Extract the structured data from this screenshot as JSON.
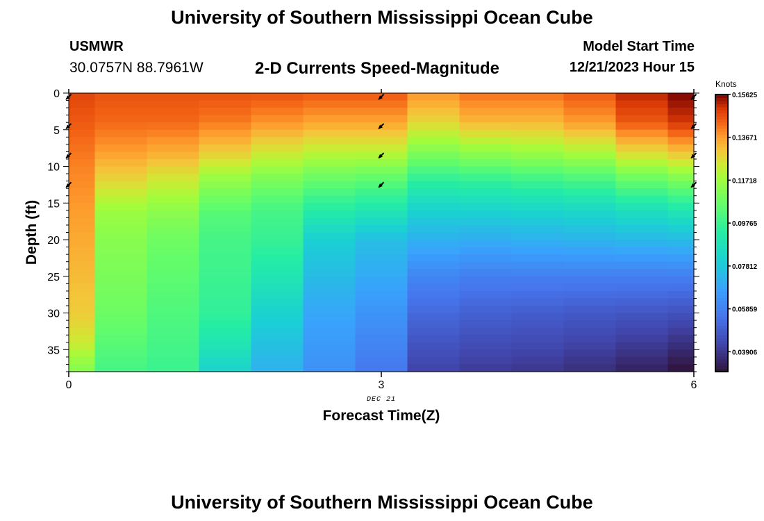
{
  "header": {
    "title": "University of Southern Mississippi Ocean Cube",
    "station": "USMWR",
    "coordinates": "30.0757N  88.7961W",
    "subtitle": "2-D Currents Speed-Magnitude",
    "start_label": "Model Start Time",
    "start_time": "12/21/2023 Hour 15"
  },
  "footer": {
    "title": "University of Southern Mississippi Ocean Cube"
  },
  "chart_data": {
    "type": "heatmap",
    "title": "2-D Currents Speed-Magnitude",
    "xlabel": "Forecast Time(Z)",
    "ylabel": "Depth (ft)",
    "x_ticks": [
      0,
      3,
      6
    ],
    "x_sub_label": "DEC 21",
    "y_ticks": [
      0,
      5,
      10,
      15,
      20,
      25,
      30,
      35
    ],
    "xlim": [
      0,
      6
    ],
    "ylim": [
      38,
      0
    ],
    "colorbar": {
      "label": "Knots",
      "ticks": [
        "0.15625",
        "0.13671",
        "0.11718",
        "0.09765",
        "0.07812",
        "0.05859",
        "0.03906"
      ],
      "range": [
        0.03,
        0.1562
      ]
    },
    "column_times": [
      0,
      0.25,
      0.75,
      1.25,
      1.75,
      2.25,
      2.75,
      3.25,
      3.75,
      4.25,
      4.75,
      5.25,
      5.75
    ],
    "column_edges": [
      0,
      0.25,
      0.75,
      1.25,
      1.75,
      2.25,
      2.75,
      3.25,
      3.75,
      4.25,
      4.75,
      5.25,
      5.75,
      6
    ],
    "depth_profiles": [
      {
        "depth": [
          0,
          10,
          20,
          30,
          34,
          38
        ],
        "speed": [
          0.148,
          0.14,
          0.135,
          0.13,
          0.124,
          0.112
        ]
      },
      {
        "depth": [
          0,
          4,
          8,
          12,
          16,
          20,
          30,
          36,
          38
        ],
        "speed": [
          0.146,
          0.143,
          0.137,
          0.128,
          0.117,
          0.113,
          0.108,
          0.102,
          0.1
        ]
      },
      {
        "depth": [
          0,
          4,
          8,
          12,
          16,
          20,
          30,
          38
        ],
        "speed": [
          0.146,
          0.143,
          0.135,
          0.124,
          0.114,
          0.108,
          0.102,
          0.098
        ]
      },
      {
        "depth": [
          0,
          4,
          8,
          12,
          16,
          20,
          30,
          34,
          38
        ],
        "speed": [
          0.146,
          0.141,
          0.13,
          0.115,
          0.104,
          0.1,
          0.096,
          0.09,
          0.082
        ]
      },
      {
        "depth": [
          0,
          4,
          8,
          12,
          16,
          20,
          25,
          30,
          38
        ],
        "speed": [
          0.146,
          0.138,
          0.125,
          0.11,
          0.1,
          0.097,
          0.09,
          0.082,
          0.072
        ]
      },
      {
        "depth": [
          0,
          4,
          8,
          12,
          16,
          20,
          30,
          38
        ],
        "speed": [
          0.145,
          0.136,
          0.122,
          0.106,
          0.093,
          0.081,
          0.069,
          0.063
        ]
      },
      {
        "depth": [
          0,
          4,
          8,
          12,
          16,
          20,
          30,
          38
        ],
        "speed": [
          0.145,
          0.136,
          0.122,
          0.104,
          0.09,
          0.076,
          0.064,
          0.056
        ]
      },
      {
        "depth": [
          0,
          4,
          8,
          12,
          16,
          20,
          25,
          30,
          38
        ],
        "speed": [
          0.138,
          0.128,
          0.112,
          0.095,
          0.082,
          0.072,
          0.06,
          0.052,
          0.042
        ]
      },
      {
        "depth": [
          0,
          4,
          8,
          12,
          16,
          20,
          25,
          30,
          38
        ],
        "speed": [
          0.142,
          0.133,
          0.115,
          0.096,
          0.082,
          0.071,
          0.058,
          0.05,
          0.04
        ]
      },
      {
        "depth": [
          0,
          4,
          8,
          12,
          16,
          20,
          25,
          30,
          38
        ],
        "speed": [
          0.142,
          0.133,
          0.117,
          0.098,
          0.083,
          0.072,
          0.058,
          0.049,
          0.039
        ]
      },
      {
        "depth": [
          0,
          4,
          8,
          12,
          16,
          20,
          25,
          30,
          38
        ],
        "speed": [
          0.145,
          0.137,
          0.12,
          0.1,
          0.084,
          0.073,
          0.058,
          0.048,
          0.037
        ]
      },
      {
        "depth": [
          0,
          4,
          8,
          12,
          16,
          20,
          25,
          30,
          38
        ],
        "speed": [
          0.152,
          0.145,
          0.128,
          0.106,
          0.087,
          0.074,
          0.058,
          0.047,
          0.034
        ]
      },
      {
        "depth": [
          0,
          4,
          8,
          12,
          16,
          20,
          25,
          30,
          38
        ],
        "speed": [
          0.156,
          0.15,
          0.132,
          0.11,
          0.09,
          0.075,
          0.058,
          0.046,
          0.03
        ]
      }
    ],
    "vectors": [
      {
        "time": 0,
        "depth": 0.5,
        "dir": 225
      },
      {
        "time": 0,
        "depth": 4.5,
        "dir": 225
      },
      {
        "time": 0,
        "depth": 8.5,
        "dir": 225
      },
      {
        "time": 0,
        "depth": 12.5,
        "dir": 225
      },
      {
        "time": 3,
        "depth": 0.5,
        "dir": 225
      },
      {
        "time": 3,
        "depth": 4.5,
        "dir": 225
      },
      {
        "time": 3,
        "depth": 8.5,
        "dir": 225
      },
      {
        "time": 3,
        "depth": 12.5,
        "dir": 225
      },
      {
        "time": 6,
        "depth": 0.5,
        "dir": 225
      },
      {
        "time": 6,
        "depth": 4.5,
        "dir": 225
      },
      {
        "time": 6,
        "depth": 8.5,
        "dir": 225
      },
      {
        "time": 6,
        "depth": 12.5,
        "dir": 225
      }
    ]
  }
}
